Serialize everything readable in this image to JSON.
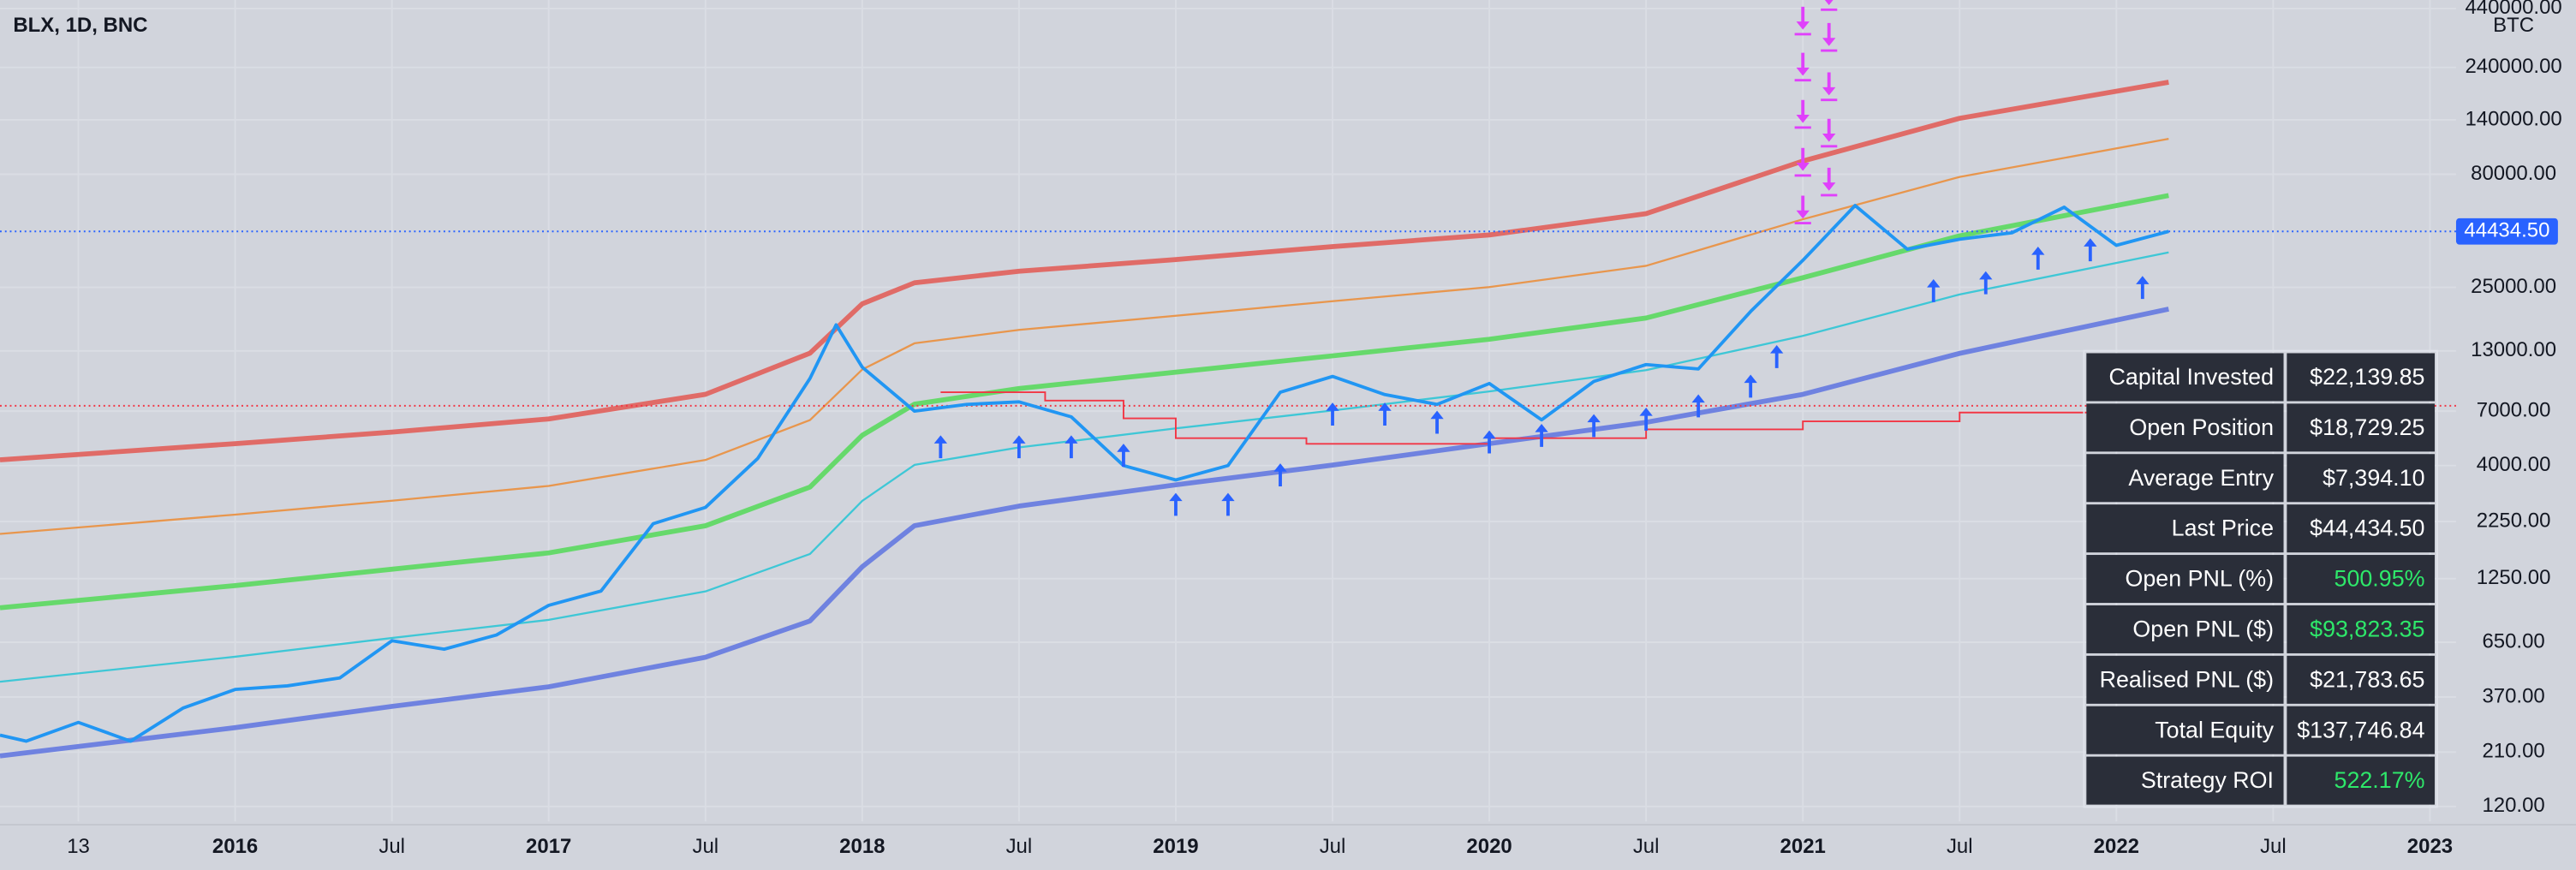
{
  "chart_data": {
    "type": "line",
    "title": "BLX, 1D, BNC",
    "unit": "BTC",
    "log_scale": true,
    "grid": true,
    "xlim": [
      "2015-04",
      "2023-02"
    ],
    "ylim": [
      103,
      480000
    ],
    "xticks": [
      {
        "value": "2015-07",
        "label": "13"
      },
      {
        "value": "2016-01",
        "label": "2016"
      },
      {
        "value": "2016-07",
        "label": "Jul"
      },
      {
        "value": "2017-01",
        "label": "2017"
      },
      {
        "value": "2017-07",
        "label": "Jul"
      },
      {
        "value": "2018-01",
        "label": "2018"
      },
      {
        "value": "2018-07",
        "label": "Jul"
      },
      {
        "value": "2019-01",
        "label": "2019"
      },
      {
        "value": "2019-07",
        "label": "Jul"
      },
      {
        "value": "2020-01",
        "label": "2020"
      },
      {
        "value": "2020-07",
        "label": "Jul"
      },
      {
        "value": "2021-01",
        "label": "2021"
      },
      {
        "value": "2021-07",
        "label": "Jul"
      },
      {
        "value": "2022-01",
        "label": "2022"
      },
      {
        "value": "2022-07",
        "label": "Jul"
      },
      {
        "value": "2023-01",
        "label": "2023"
      }
    ],
    "yticks": [
      {
        "value": 440000,
        "label": "440000.00"
      },
      {
        "value": 240000,
        "label": "240000.00"
      },
      {
        "value": 140000,
        "label": "140000.00"
      },
      {
        "value": 80000,
        "label": "80000.00"
      },
      {
        "value": 25000,
        "label": "25000.00"
      },
      {
        "value": 13000,
        "label": "13000.00"
      },
      {
        "value": 7000,
        "label": "7000.00"
      },
      {
        "value": 4000,
        "label": "4000.00"
      },
      {
        "value": 2250,
        "label": "2250.00"
      },
      {
        "value": 1250,
        "label": "1250.00"
      },
      {
        "value": 650,
        "label": "650.00"
      },
      {
        "value": 370,
        "label": "370.00"
      },
      {
        "value": 210,
        "label": "210.00"
      },
      {
        "value": 120,
        "label": "120.00"
      }
    ],
    "x": [
      "2015-04",
      "2015-05",
      "2015-07",
      "2015-09",
      "2015-11",
      "2016-01",
      "2016-03",
      "2016-05",
      "2016-07",
      "2016-09",
      "2016-11",
      "2017-01",
      "2017-03",
      "2017-05",
      "2017-07",
      "2017-09",
      "2017-11",
      "2017-12",
      "2018-01",
      "2018-03",
      "2018-05",
      "2018-07",
      "2018-09",
      "2018-11",
      "2019-01",
      "2019-03",
      "2019-05",
      "2019-07",
      "2019-09",
      "2019-11",
      "2020-01",
      "2020-03",
      "2020-05",
      "2020-07",
      "2020-09",
      "2020-11",
      "2021-01",
      "2021-03",
      "2021-05",
      "2021-07",
      "2021-09",
      "2021-11",
      "2022-01",
      "2022-03"
    ],
    "series": [
      {
        "color": "#2196f3",
        "values": [
          250,
          235,
          285,
          235,
          330,
          400,
          415,
          450,
          660,
          605,
          700,
          950,
          1100,
          2200,
          2600,
          4300,
          9800,
          17000,
          11000,
          7000,
          7500,
          7700,
          6600,
          4000,
          3450,
          4000,
          8500,
          10000,
          8300,
          7500,
          9300,
          6400,
          9500,
          11300,
          10800,
          19500,
          33000,
          58000,
          37000,
          41000,
          43800,
          57000,
          38500,
          44434.5
        ]
      }
    ],
    "bands": {
      "x": [
        "2015-04",
        "2016-01",
        "2016-07",
        "2017-01",
        "2017-07",
        "2017-11",
        "2018-01",
        "2018-03",
        "2018-07",
        "2019-01",
        "2019-07",
        "2020-01",
        "2020-07",
        "2021-01",
        "2021-07",
        "2022-03"
      ],
      "series": [
        {
          "color": "#e06b67",
          "width": 3,
          "values": [
            4240,
            5010,
            5640,
            6460,
            8320,
            12700,
            21100,
            26200,
            29500,
            33270,
            38020,
            42850,
            53330,
            91620,
            142200,
            206100
          ]
        },
        {
          "color": "#e8964d",
          "width": 1.2,
          "values": [
            1980,
            2415,
            2786,
            3243,
            4236,
            6383,
            10740,
            14060,
            16140,
            18660,
            21680,
            25060,
            31190,
            50350,
            77800,
            115100
          ]
        },
        {
          "color": "#66d96b",
          "width": 3,
          "values": [
            926,
            1164,
            1377,
            1629,
            2153,
            3206,
            5458,
            7516,
            8831,
            10450,
            12360,
            14660,
            18240,
            27610,
            42460,
            64270
          ]
        },
        {
          "color": "#3ec7d6",
          "width": 1.2,
          "values": [
            433,
            560,
            679,
            818,
            1096,
            1611,
            2780,
            4027,
            4819,
            5861,
            7047,
            8570,
            10670,
            15170,
            23230,
            35810
          ]
        },
        {
          "color": "#6f82e0",
          "width": 3,
          "values": [
            202,
            270,
            336,
            411,
            557,
            809,
            1413,
            2155,
            2636,
            3281,
            4018,
            5012,
            6237,
            8318,
            12680,
            20000
          ]
        }
      ]
    },
    "average_entry_line": {
      "color": "#f23645",
      "x": [
        "2018-04",
        "2018-08",
        "2018-11",
        "2019-01",
        "2019-06",
        "2020-01",
        "2020-07",
        "2021-01",
        "2021-07",
        "2022-03"
      ],
      "values": [
        8500,
        7800,
        6500,
        5300,
        5000,
        5300,
        5800,
        6300,
        6900,
        7394.1
      ]
    },
    "buys": {
      "color": "#2962ff",
      "x": [
        "2018-04",
        "2018-07",
        "2018-09",
        "2018-11",
        "2019-01",
        "2019-03",
        "2019-05",
        "2019-07",
        "2019-09",
        "2019-11",
        "2020-01",
        "2020-03",
        "2020-05",
        "2020-07",
        "2020-09",
        "2020-11",
        "2020-12",
        "2021-06",
        "2021-08",
        "2021-10",
        "2021-12",
        "2022-02"
      ],
      "y": [
        5460,
        5460,
        5460,
        5010,
        3020,
        3020,
        4090,
        7640,
        7640,
        7030,
        5740,
        6140,
        6790,
        7260,
        8320,
        10190,
        13800,
        27200,
        29500,
        38000,
        41400,
        28100
      ]
    },
    "sells": {
      "color": "#e040fb",
      "x": [
        "2021-01",
        "2021-01",
        "2021-01",
        "2021-01",
        "2021-01",
        "2021-02",
        "2021-02",
        "2021-02",
        "2021-02",
        "2021-02"
      ],
      "y": [
        342000,
        213000,
        131000,
        80000,
        49000,
        440000,
        289000,
        174000,
        108000,
        65300
      ]
    },
    "last_price": {
      "value": 44434.5,
      "label": "44434.50",
      "color": "#2962ff"
    }
  },
  "stats_table": {
    "rows": [
      {
        "label": "Capital Invested",
        "value": "$22,139.85",
        "color": "#ffffff"
      },
      {
        "label": "Open Position",
        "value": "$18,729.25",
        "color": "#ffffff"
      },
      {
        "label": "Average Entry",
        "value": "$7,394.10",
        "color": "#ffffff"
      },
      {
        "label": "Last Price",
        "value": "$44,434.50",
        "color": "#ffffff"
      },
      {
        "label": "Open PNL (%)",
        "value": "500.95%",
        "color": "#2ee86a"
      },
      {
        "label": "Open PNL ($)",
        "value": "$93,823.35",
        "color": "#2ee86a"
      },
      {
        "label": "Realised PNL ($)",
        "value": "$21,783.65",
        "color": "#ffffff"
      },
      {
        "label": "Total Equity",
        "value": "$137,746.84",
        "color": "#ffffff"
      },
      {
        "label": "Strategy ROI",
        "value": "522.17%",
        "color": "#2ee86a"
      }
    ]
  }
}
